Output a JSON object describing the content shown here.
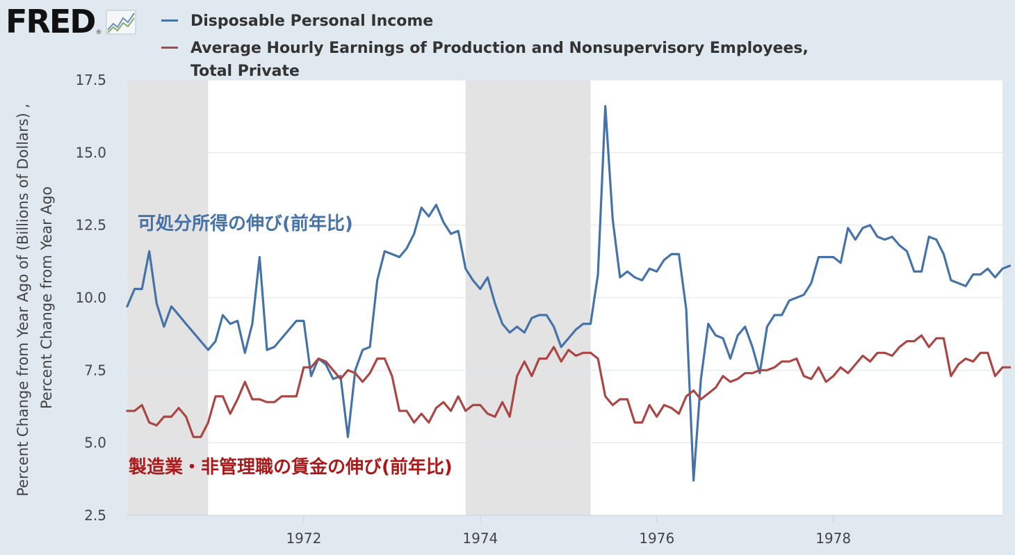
{
  "logo": {
    "text": "FRED",
    "reg": "®",
    "icon": "chart-line-icon"
  },
  "legend": [
    {
      "label": "Disposable Personal Income",
      "color": "#4572a7"
    },
    {
      "label": "Average Hourly Earnings of Production and Nonsupervisory Employees, Total Private",
      "color": "#aa4643"
    }
  ],
  "chart_data": {
    "type": "line",
    "title": "",
    "ylabel": "Percent Change from Year Ago of (Billions of Dollars) , Percent Change from Year Ago",
    "ylim": [
      2.5,
      17.5
    ],
    "yticks": [
      2.5,
      5.0,
      7.5,
      10.0,
      12.5,
      15.0,
      17.5
    ],
    "ytick_labels": [
      "2.5",
      "5.0",
      "7.5",
      "10.0",
      "12.5",
      "15.0",
      "17.5"
    ],
    "xlim": [
      "1970-01",
      "1979-12"
    ],
    "xticks": [
      "1972",
      "1974",
      "1976",
      "1978"
    ],
    "grid": true,
    "recessions": [
      [
        "1970-01",
        "1970-11"
      ],
      [
        "1973-11",
        "1975-03"
      ]
    ],
    "annotations": [
      {
        "text": "可処分所得の伸び(前年比)",
        "color": "#4572a7"
      },
      {
        "text": "製造業・非管理職の賃金の伸び(前年比)",
        "color": "#aa1a1a"
      }
    ],
    "series": [
      {
        "name": "Disposable Personal Income",
        "color": "#4572a7",
        "start": "1970-01",
        "values": [
          9.7,
          10.3,
          10.3,
          11.6,
          9.8,
          9.0,
          9.7,
          9.4,
          9.1,
          8.8,
          8.5,
          8.2,
          8.5,
          9.4,
          9.1,
          9.2,
          8.1,
          9.1,
          11.4,
          8.2,
          8.3,
          8.6,
          8.9,
          9.2,
          9.2,
          7.3,
          7.9,
          7.7,
          7.2,
          7.3,
          5.2,
          7.5,
          8.2,
          8.3,
          10.6,
          11.6,
          11.5,
          11.4,
          11.7,
          12.2,
          13.1,
          12.8,
          13.2,
          12.6,
          12.2,
          12.3,
          11.0,
          10.6,
          10.3,
          10.7,
          9.8,
          9.1,
          8.8,
          9.0,
          8.8,
          9.3,
          9.4,
          9.4,
          9.0,
          8.3,
          8.6,
          8.9,
          9.1,
          9.1,
          10.8,
          16.6,
          12.7,
          10.7,
          10.9,
          10.7,
          10.6,
          11.0,
          10.9,
          11.3,
          11.5,
          11.5,
          9.6,
          3.7,
          7.2,
          9.1,
          8.7,
          8.6,
          7.9,
          8.7,
          9.0,
          8.3,
          7.4,
          9.0,
          9.4,
          9.4,
          9.9,
          10.0,
          10.1,
          10.5,
          11.4,
          11.4,
          11.4,
          11.2,
          12.4,
          12.0,
          12.4,
          12.5,
          12.1,
          12.0,
          12.1,
          11.8,
          11.6,
          10.9,
          10.9,
          12.1,
          12.0,
          11.5,
          10.6,
          10.5,
          10.4,
          10.8,
          10.8,
          11.0,
          10.7,
          11.0,
          11.1
        ]
      },
      {
        "name": "Average Hourly Earnings of Production and Nonsupervisory Employees, Total Private",
        "color": "#aa4643",
        "start": "1970-01",
        "values": [
          6.1,
          6.1,
          6.3,
          5.7,
          5.6,
          5.9,
          5.9,
          6.2,
          5.9,
          5.2,
          5.2,
          5.7,
          6.6,
          6.6,
          6.0,
          6.5,
          7.1,
          6.5,
          6.5,
          6.4,
          6.4,
          6.6,
          6.6,
          6.6,
          7.6,
          7.6,
          7.9,
          7.8,
          7.5,
          7.2,
          7.5,
          7.4,
          7.1,
          7.4,
          7.9,
          7.9,
          7.3,
          6.1,
          6.1,
          5.7,
          6.0,
          5.7,
          6.2,
          6.4,
          6.1,
          6.6,
          6.1,
          6.3,
          6.3,
          6.0,
          5.9,
          6.4,
          5.9,
          7.3,
          7.8,
          7.3,
          7.9,
          7.9,
          8.3,
          7.8,
          8.2,
          8.0,
          8.1,
          8.1,
          7.9,
          6.6,
          6.3,
          6.5,
          6.5,
          5.7,
          5.7,
          6.3,
          5.9,
          6.3,
          6.2,
          6.0,
          6.6,
          6.8,
          6.5,
          6.7,
          6.9,
          7.3,
          7.1,
          7.2,
          7.4,
          7.4,
          7.5,
          7.5,
          7.6,
          7.8,
          7.8,
          7.9,
          7.3,
          7.2,
          7.6,
          7.1,
          7.3,
          7.6,
          7.4,
          7.7,
          8.0,
          7.8,
          8.1,
          8.1,
          8.0,
          8.3,
          8.5,
          8.5,
          8.7,
          8.3,
          8.6,
          8.6,
          7.3,
          7.7,
          7.9,
          7.8,
          8.1,
          8.1,
          7.3,
          7.6,
          7.6
        ]
      }
    ]
  }
}
